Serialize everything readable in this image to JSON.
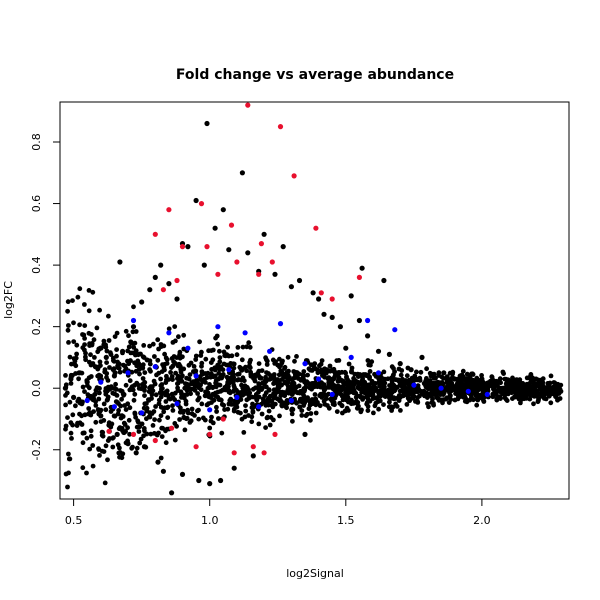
{
  "chart_data": {
    "type": "scatter",
    "title": "Fold change vs average abundance",
    "xlabel": "log2Signal",
    "ylabel": "log2FC",
    "xlim": [
      0.45,
      2.32
    ],
    "ylim": [
      -0.36,
      0.93
    ],
    "x_ticks": [
      0.5,
      1.0,
      1.5,
      2.0
    ],
    "x_tick_labels": [
      "0.5",
      "1.0",
      "1.5",
      "2.0"
    ],
    "y_ticks": [
      -0.2,
      0.0,
      0.2,
      0.4,
      0.6,
      0.8
    ],
    "y_tick_labels": [
      "-0.2",
      "0.0",
      "0.2",
      "0.4",
      "0.6",
      "0.8"
    ],
    "grid": false,
    "legend": "none",
    "series": [
      {
        "color": "#000000",
        "points": [
          [
            0.47,
            0.0
          ],
          [
            0.49,
            0.03
          ],
          [
            0.5,
            -0.03
          ],
          [
            0.52,
            0.05
          ],
          [
            0.53,
            -0.05
          ],
          [
            0.55,
            0.02
          ],
          [
            0.56,
            -0.08
          ],
          [
            0.58,
            0.07
          ],
          [
            0.6,
            -0.09
          ],
          [
            0.62,
            0.1
          ],
          [
            0.63,
            -0.12
          ],
          [
            0.65,
            0.04
          ],
          [
            0.66,
            -0.15
          ],
          [
            0.67,
            0.41
          ],
          [
            0.68,
            0.12
          ],
          [
            0.7,
            -0.18
          ],
          [
            0.71,
            0.15
          ],
          [
            0.72,
            0.2
          ],
          [
            0.73,
            -0.21
          ],
          [
            0.75,
            0.28
          ],
          [
            0.76,
            -0.19
          ],
          [
            0.78,
            0.32
          ],
          [
            0.8,
            0.36
          ],
          [
            0.81,
            -0.24
          ],
          [
            0.82,
            0.4
          ],
          [
            0.83,
            -0.27
          ],
          [
            0.85,
            0.34
          ],
          [
            0.86,
            -0.34
          ],
          [
            0.88,
            0.29
          ],
          [
            0.9,
            0.47
          ],
          [
            0.9,
            -0.28
          ],
          [
            0.92,
            0.46
          ],
          [
            0.95,
            0.61
          ],
          [
            0.96,
            -0.3
          ],
          [
            0.98,
            0.4
          ],
          [
            0.99,
            0.86
          ],
          [
            1.0,
            -0.31
          ],
          [
            1.02,
            0.52
          ],
          [
            1.04,
            -0.3
          ],
          [
            1.05,
            0.58
          ],
          [
            1.07,
            0.45
          ],
          [
            1.09,
            -0.26
          ],
          [
            1.12,
            0.7
          ],
          [
            1.14,
            0.44
          ],
          [
            1.16,
            -0.22
          ],
          [
            1.18,
            0.38
          ],
          [
            1.2,
            0.5
          ],
          [
            1.24,
            0.37
          ],
          [
            1.27,
            0.46
          ],
          [
            1.3,
            0.33
          ],
          [
            1.33,
            0.35
          ],
          [
            1.35,
            -0.15
          ],
          [
            1.38,
            0.31
          ],
          [
            1.4,
            0.29
          ],
          [
            1.42,
            0.24
          ],
          [
            1.45,
            0.23
          ],
          [
            1.48,
            0.2
          ],
          [
            1.5,
            0.13
          ],
          [
            1.52,
            0.3
          ],
          [
            1.55,
            0.22
          ],
          [
            1.56,
            0.39
          ],
          [
            1.58,
            0.17
          ],
          [
            1.62,
            0.12
          ],
          [
            1.64,
            0.35
          ],
          [
            1.66,
            0.11
          ],
          [
            1.7,
            0.08
          ],
          [
            1.74,
            0.06
          ],
          [
            1.78,
            0.1
          ],
          [
            1.82,
            0.04
          ],
          [
            1.86,
            0.05
          ],
          [
            1.9,
            0.03
          ],
          [
            1.95,
            0.02
          ],
          [
            2.0,
            0.03
          ],
          [
            2.05,
            0.02
          ],
          [
            2.1,
            0.01
          ],
          [
            2.15,
            0.0
          ],
          [
            2.2,
            0.01
          ],
          [
            2.25,
            0.0
          ],
          [
            2.29,
            -0.01
          ]
        ]
      },
      {
        "color": "#0000ff",
        "points": [
          [
            0.55,
            -0.04
          ],
          [
            0.6,
            0.02
          ],
          [
            0.65,
            -0.06
          ],
          [
            0.7,
            0.05
          ],
          [
            0.72,
            0.22
          ],
          [
            0.75,
            -0.08
          ],
          [
            0.8,
            0.07
          ],
          [
            0.85,
            0.18
          ],
          [
            0.88,
            -0.05
          ],
          [
            0.92,
            0.13
          ],
          [
            0.95,
            0.04
          ],
          [
            1.0,
            -0.07
          ],
          [
            1.03,
            0.2
          ],
          [
            1.07,
            0.06
          ],
          [
            1.1,
            -0.03
          ],
          [
            1.13,
            0.18
          ],
          [
            1.18,
            -0.06
          ],
          [
            1.22,
            0.12
          ],
          [
            1.26,
            0.21
          ],
          [
            1.3,
            -0.04
          ],
          [
            1.35,
            0.08
          ],
          [
            1.4,
            0.03
          ],
          [
            1.45,
            -0.02
          ],
          [
            1.52,
            0.1
          ],
          [
            1.58,
            0.22
          ],
          [
            1.62,
            0.05
          ],
          [
            1.68,
            0.19
          ],
          [
            1.75,
            0.01
          ],
          [
            1.85,
            0.0
          ],
          [
            1.95,
            -0.01
          ],
          [
            2.02,
            -0.02
          ]
        ]
      },
      {
        "color": "#e8102e",
        "points": [
          [
            0.8,
            0.5
          ],
          [
            0.83,
            0.32
          ],
          [
            0.85,
            0.58
          ],
          [
            0.88,
            0.35
          ],
          [
            0.9,
            0.46
          ],
          [
            0.97,
            0.6
          ],
          [
            0.99,
            0.46
          ],
          [
            1.03,
            0.37
          ],
          [
            1.08,
            0.53
          ],
          [
            1.1,
            0.41
          ],
          [
            1.14,
            0.92
          ],
          [
            1.18,
            0.37
          ],
          [
            1.19,
            0.47
          ],
          [
            1.23,
            0.41
          ],
          [
            1.26,
            0.85
          ],
          [
            1.31,
            0.69
          ],
          [
            1.39,
            0.52
          ],
          [
            1.41,
            0.31
          ],
          [
            1.45,
            0.29
          ],
          [
            1.55,
            0.36
          ],
          [
            0.63,
            -0.14
          ],
          [
            0.72,
            -0.15
          ],
          [
            0.8,
            -0.17
          ],
          [
            0.86,
            -0.13
          ],
          [
            0.95,
            -0.19
          ],
          [
            1.0,
            -0.15
          ],
          [
            1.05,
            -0.1
          ],
          [
            1.09,
            -0.21
          ],
          [
            1.16,
            -0.19
          ],
          [
            1.2,
            -0.21
          ],
          [
            1.24,
            -0.15
          ]
        ]
      }
    ]
  }
}
